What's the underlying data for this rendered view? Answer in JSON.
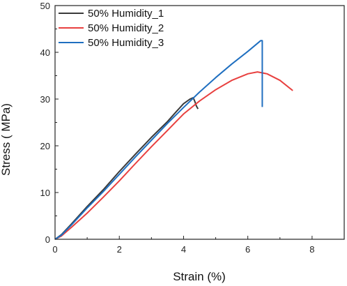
{
  "chart_data": {
    "type": "line",
    "xlabel": "Strain (%)",
    "ylabel": "Stress ( MPa)",
    "xlim": [
      0,
      9
    ],
    "ylim": [
      0,
      50
    ],
    "xticks": [
      0,
      2,
      4,
      6,
      8
    ],
    "yticks": [
      0,
      10,
      20,
      30,
      40,
      50
    ],
    "x_tick_labels": [
      "0",
      "2",
      "4",
      "6",
      "8"
    ],
    "y_tick_labels": [
      "0",
      "10",
      "20",
      "30",
      "40",
      "50"
    ],
    "grid": false,
    "legend_position": "top-left",
    "series": [
      {
        "name": "50% Humidity_1",
        "color": "#3a3a3a",
        "points": [
          [
            0,
            0
          ],
          [
            0.2,
            1.0
          ],
          [
            0.5,
            3.2
          ],
          [
            1,
            7.0
          ],
          [
            1.5,
            10.6
          ],
          [
            2,
            14.5
          ],
          [
            2.5,
            18.2
          ],
          [
            3,
            21.8
          ],
          [
            3.5,
            25.2
          ],
          [
            3.8,
            27.5
          ],
          [
            4.0,
            29.0
          ],
          [
            4.2,
            30.0
          ],
          [
            4.3,
            30.3
          ],
          [
            4.35,
            29.5
          ],
          [
            4.4,
            28.5
          ],
          [
            4.45,
            27.9
          ]
        ]
      },
      {
        "name": "50% Humidity_2",
        "color": "#e8403f",
        "points": [
          [
            0,
            0
          ],
          [
            0.2,
            0.7
          ],
          [
            0.5,
            2.5
          ],
          [
            1,
            5.6
          ],
          [
            1.5,
            9.0
          ],
          [
            2,
            12.5
          ],
          [
            2.5,
            16.2
          ],
          [
            3,
            19.8
          ],
          [
            3.5,
            23.3
          ],
          [
            4,
            26.8
          ],
          [
            4.5,
            29.6
          ],
          [
            5,
            32.0
          ],
          [
            5.5,
            34.0
          ],
          [
            6,
            35.4
          ],
          [
            6.3,
            35.8
          ],
          [
            6.6,
            35.4
          ],
          [
            7,
            34.0
          ],
          [
            7.4,
            31.8
          ]
        ]
      },
      {
        "name": "50% Humidity_3",
        "color": "#1f6fc0",
        "points": [
          [
            0,
            0
          ],
          [
            0.2,
            0.9
          ],
          [
            0.5,
            3.0
          ],
          [
            1,
            6.7
          ],
          [
            1.5,
            10.2
          ],
          [
            2,
            13.9
          ],
          [
            2.5,
            17.6
          ],
          [
            3,
            21.2
          ],
          [
            3.5,
            24.8
          ],
          [
            4,
            28.2
          ],
          [
            4.5,
            31.5
          ],
          [
            5,
            34.6
          ],
          [
            5.5,
            37.5
          ],
          [
            6,
            40.2
          ],
          [
            6.4,
            42.5
          ],
          [
            6.45,
            42.5
          ],
          [
            6.45,
            28.3
          ]
        ]
      }
    ]
  }
}
